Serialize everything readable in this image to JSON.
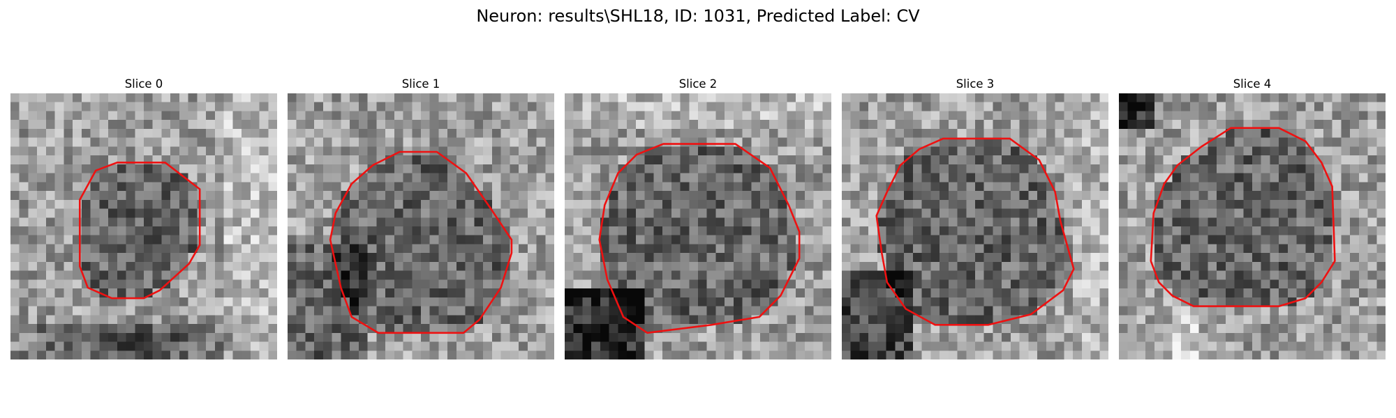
{
  "figure": {
    "title": "Neuron: results\\SHL18, ID: 1031, Predicted Label: CV",
    "contour_color": "#ee1111"
  },
  "slices": [
    {
      "label": "Slice 0",
      "image_description": "noisy grayscale microscopy patch, dark band along bottom, bright right edge",
      "contour": [
        [
          0.4,
          0.26
        ],
        [
          0.58,
          0.26
        ],
        [
          0.71,
          0.36
        ],
        [
          0.71,
          0.57
        ],
        [
          0.67,
          0.64
        ],
        [
          0.56,
          0.74
        ],
        [
          0.5,
          0.77
        ],
        [
          0.38,
          0.77
        ],
        [
          0.29,
          0.73
        ],
        [
          0.26,
          0.65
        ],
        [
          0.26,
          0.4
        ],
        [
          0.32,
          0.29
        ]
      ]
    },
    {
      "label": "Slice 1",
      "image_description": "noisy grayscale microscopy patch, darker lower-left region",
      "contour": [
        [
          0.42,
          0.22
        ],
        [
          0.56,
          0.22
        ],
        [
          0.67,
          0.3
        ],
        [
          0.76,
          0.43
        ],
        [
          0.84,
          0.55
        ],
        [
          0.84,
          0.6
        ],
        [
          0.8,
          0.73
        ],
        [
          0.72,
          0.85
        ],
        [
          0.66,
          0.9
        ],
        [
          0.34,
          0.9
        ],
        [
          0.24,
          0.84
        ],
        [
          0.2,
          0.73
        ],
        [
          0.16,
          0.55
        ],
        [
          0.18,
          0.45
        ],
        [
          0.24,
          0.34
        ],
        [
          0.32,
          0.27
        ]
      ]
    },
    {
      "label": "Slice 2",
      "image_description": "noisy grayscale microscopy patch, large darker circular body, very dark lower-left corner",
      "contour": [
        [
          0.37,
          0.19
        ],
        [
          0.64,
          0.19
        ],
        [
          0.77,
          0.28
        ],
        [
          0.84,
          0.42
        ],
        [
          0.88,
          0.52
        ],
        [
          0.88,
          0.62
        ],
        [
          0.81,
          0.76
        ],
        [
          0.73,
          0.84
        ],
        [
          0.55,
          0.87
        ],
        [
          0.31,
          0.9
        ],
        [
          0.22,
          0.84
        ],
        [
          0.16,
          0.7
        ],
        [
          0.13,
          0.55
        ],
        [
          0.15,
          0.42
        ],
        [
          0.2,
          0.3
        ],
        [
          0.27,
          0.23
        ]
      ]
    },
    {
      "label": "Slice 3",
      "image_description": "noisy grayscale microscopy patch, darker lower-left region",
      "contour": [
        [
          0.38,
          0.17
        ],
        [
          0.63,
          0.17
        ],
        [
          0.74,
          0.25
        ],
        [
          0.8,
          0.37
        ],
        [
          0.82,
          0.48
        ],
        [
          0.87,
          0.66
        ],
        [
          0.83,
          0.74
        ],
        [
          0.71,
          0.83
        ],
        [
          0.55,
          0.87
        ],
        [
          0.35,
          0.87
        ],
        [
          0.24,
          0.81
        ],
        [
          0.17,
          0.71
        ],
        [
          0.15,
          0.6
        ],
        [
          0.13,
          0.46
        ],
        [
          0.17,
          0.37
        ],
        [
          0.22,
          0.27
        ],
        [
          0.29,
          0.21
        ]
      ]
    },
    {
      "label": "Slice 4",
      "image_description": "noisy grayscale microscopy patch, dark top-left corner, bright ring around cell",
      "contour": [
        [
          0.42,
          0.13
        ],
        [
          0.6,
          0.13
        ],
        [
          0.7,
          0.18
        ],
        [
          0.76,
          0.26
        ],
        [
          0.8,
          0.35
        ],
        [
          0.81,
          0.63
        ],
        [
          0.76,
          0.71
        ],
        [
          0.7,
          0.77
        ],
        [
          0.6,
          0.8
        ],
        [
          0.28,
          0.8
        ],
        [
          0.2,
          0.76
        ],
        [
          0.15,
          0.71
        ],
        [
          0.12,
          0.63
        ],
        [
          0.13,
          0.45
        ],
        [
          0.17,
          0.34
        ],
        [
          0.22,
          0.27
        ],
        [
          0.31,
          0.2
        ]
      ]
    }
  ]
}
